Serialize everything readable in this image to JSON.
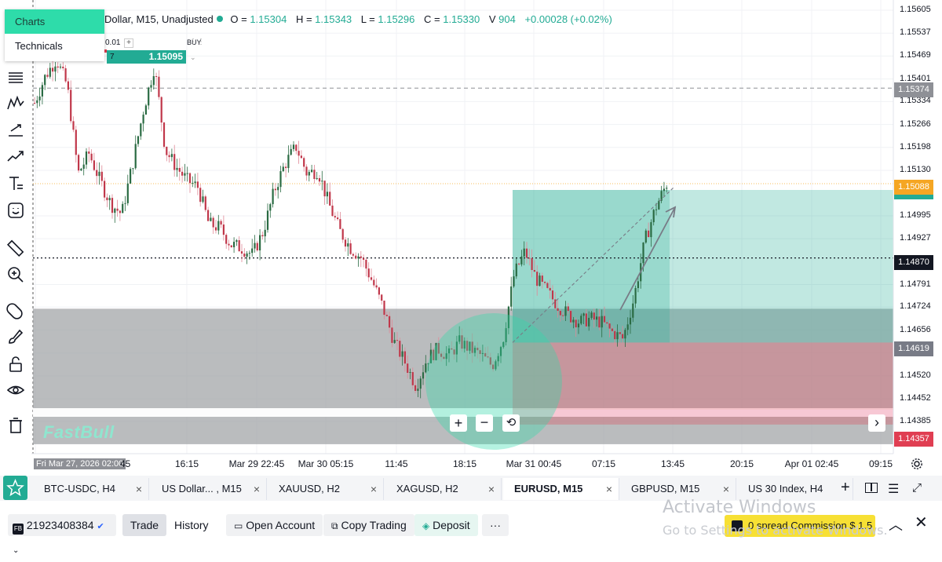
{
  "menu": {
    "items": [
      "Charts",
      "Technicals"
    ],
    "active_index": 0
  },
  "legend": {
    "symbol": "Dollar, M15, Unadjusted",
    "o_label": "O =",
    "o": "1.15304",
    "h_label": "H =",
    "h": "1.15343",
    "l_label": "L =",
    "l": "1.15296",
    "c_label": "C =",
    "c": "1.15330",
    "v_label": "V",
    "v": "904",
    "change": "+0.00028 (+0.02%)"
  },
  "order_widget": {
    "lot": "0.01",
    "plus": "+",
    "side_label": "BUY",
    "qty": "7",
    "price": "1.15095"
  },
  "price_axis": {
    "ticks": [
      "1.15605",
      "1.15537",
      "1.15469",
      "1.15401",
      "1.15334",
      "1.15266",
      "1.15198",
      "1.15130",
      "1.14995",
      "1.14927",
      "1.14791",
      "1.14724",
      "1.14656",
      "1.14588",
      "1.14520",
      "1.14452",
      "1.14385"
    ],
    "badges": [
      {
        "text": "1.15374",
        "color": "#8e9096"
      },
      {
        "text": "1.15088",
        "color": "#f5a623"
      },
      {
        "text": "1.14870",
        "color": "#131722"
      },
      {
        "text": "1.14619",
        "color": "#787b86"
      },
      {
        "text": "1.14357",
        "color": "#e03e52"
      }
    ]
  },
  "time_axis": {
    "start_label": "Fri Mar 27, 2026 02:00",
    "start_suffix": "45",
    "ticks": [
      "16:15",
      "Mar 29 22:45",
      "Mar 30 05:15",
      "11:45",
      "18:15",
      "Mar 31 00:45",
      "07:15",
      "13:45",
      "20:15",
      "Apr 01 02:45",
      "09:15"
    ]
  },
  "chart_data": {
    "type": "candlestick",
    "title": "",
    "symbol": "EURUSD",
    "interval": "M15",
    "ylim": [
      1.1433,
      1.1562
    ],
    "x_ticks": [
      "Fri Mar 27, 2026 02:00",
      "16:15",
      "Mar 29 22:45",
      "Mar 30 05:15",
      "11:45",
      "18:15",
      "Mar 31 00:45",
      "07:15",
      "13:45",
      "20:15",
      "Apr 01 02:45",
      "09:15"
    ],
    "close_path": [
      1.1533,
      1.1541,
      1.1546,
      1.1538,
      1.1512,
      1.1518,
      1.151,
      1.1503,
      1.15,
      1.1515,
      1.1531,
      1.1544,
      1.1519,
      1.1514,
      1.151,
      1.1508,
      1.1497,
      1.1496,
      1.1491,
      1.149,
      1.1488,
      1.1495,
      1.1507,
      1.1515,
      1.152,
      1.1512,
      1.1513,
      1.1503,
      1.1495,
      1.149,
      1.1487,
      1.148,
      1.1472,
      1.1462,
      1.1456,
      1.1449,
      1.1457,
      1.146,
      1.1458,
      1.1462,
      1.146,
      1.1458,
      1.1455,
      1.1463,
      1.1482,
      1.1489,
      1.1481,
      1.1477,
      1.1473,
      1.147,
      1.1468,
      1.1469,
      1.1468,
      1.1465,
      1.1463,
      1.1475,
      1.1492,
      1.1502,
      1.1509
    ],
    "long_position": {
      "entry": 1.14619,
      "take_profit": 1.15088,
      "stop_loss": 1.14357
    },
    "horizontal_lines": [
      1.15374,
      1.1487
    ]
  },
  "watermark_logo": "FastBull",
  "nav": {
    "prev": "‹",
    "next": "›"
  },
  "tabs": [
    {
      "label": "BTC-USDC, H4"
    },
    {
      "label": "US Dollar... , M15"
    },
    {
      "label": "XAUUSD, H2"
    },
    {
      "label": "XAGUSD, H2"
    },
    {
      "label": "EURUSD, M15",
      "active": true
    },
    {
      "label": "GBPUSD, M15"
    },
    {
      "label": "US 30 Index, H4"
    }
  ],
  "tab_close": "×",
  "footer": {
    "account": "21923408384",
    "trade": "Trade",
    "history": "History",
    "open_account": "Open Account",
    "copy_trading": "Copy Trading",
    "deposit": "Deposit",
    "more": "···",
    "promo": "0 spread Commission $ 1.5"
  },
  "windows_watermark": {
    "line1": "Activate Windows",
    "line2": "Go to Settings to activate Windows."
  }
}
